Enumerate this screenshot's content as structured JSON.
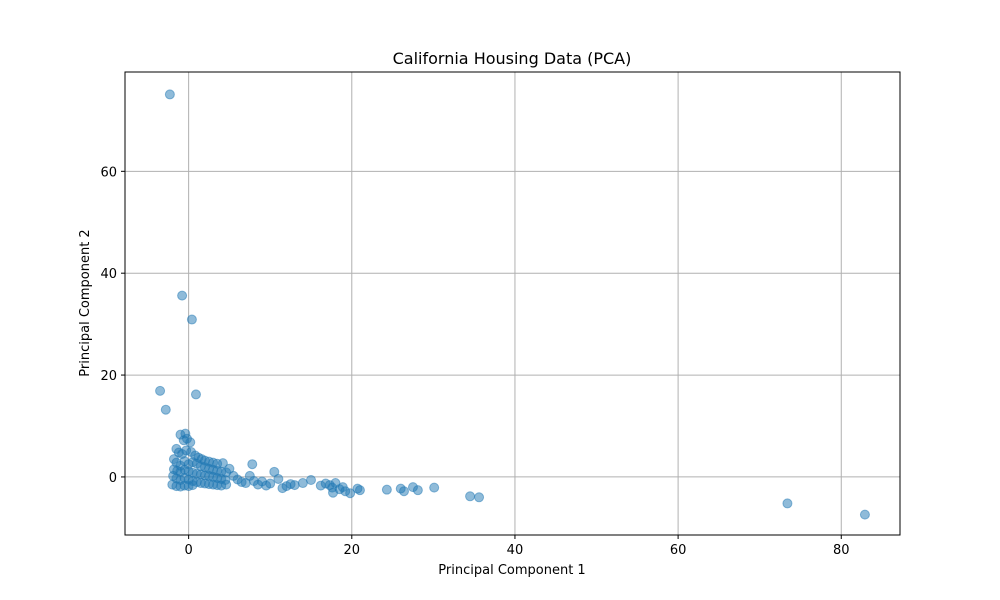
{
  "chart_data": {
    "type": "scatter",
    "title": "California Housing Data (PCA)",
    "xlabel": "Principal Component 1",
    "ylabel": "Principal Component 2",
    "xlim": [
      -7.8,
      87.2
    ],
    "ylim": [
      -11.4,
      79.5
    ],
    "xticks": [
      0,
      20,
      40,
      60,
      80
    ],
    "yticks": [
      0,
      20,
      40,
      60
    ],
    "grid": true,
    "legend": "none",
    "color": "#1f77b4",
    "alpha": 0.5,
    "series": [
      {
        "points": [
          [
            -2.3,
            75.1
          ],
          [
            -0.8,
            35.6
          ],
          [
            0.4,
            30.9
          ],
          [
            -3.5,
            16.9
          ],
          [
            0.9,
            16.2
          ],
          [
            -2.8,
            13.2
          ],
          [
            -1.0,
            8.3
          ],
          [
            -0.4,
            8.5
          ],
          [
            -0.2,
            7.5
          ],
          [
            0.2,
            6.8
          ],
          [
            -0.6,
            7.2
          ],
          [
            -1.5,
            5.5
          ],
          [
            -1.2,
            4.8
          ],
          [
            -0.8,
            4.5
          ],
          [
            -0.3,
            5.2
          ],
          [
            0.3,
            4.9
          ],
          [
            0.8,
            4.2
          ],
          [
            1.2,
            3.8
          ],
          [
            1.6,
            3.5
          ],
          [
            2.0,
            3.2
          ],
          [
            2.5,
            3.0
          ],
          [
            3.0,
            2.8
          ],
          [
            3.5,
            2.6
          ],
          [
            4.2,
            2.7
          ],
          [
            -1.8,
            3.5
          ],
          [
            -1.5,
            2.8
          ],
          [
            -1.0,
            2.2
          ],
          [
            -0.5,
            3.1
          ],
          [
            0.0,
            2.5
          ],
          [
            0.5,
            2.9
          ],
          [
            1.0,
            2.6
          ],
          [
            1.5,
            2.1
          ],
          [
            2.0,
            1.9
          ],
          [
            2.5,
            1.6
          ],
          [
            3.0,
            1.4
          ],
          [
            3.5,
            1.2
          ],
          [
            4.0,
            1.0
          ],
          [
            4.6,
            0.9
          ],
          [
            -1.8,
            1.5
          ],
          [
            -1.4,
            1.2
          ],
          [
            -1.0,
            1.0
          ],
          [
            -0.5,
            1.4
          ],
          [
            0.0,
            1.1
          ],
          [
            0.5,
            0.8
          ],
          [
            1.0,
            0.6
          ],
          [
            1.5,
            0.5
          ],
          [
            2.0,
            0.3
          ],
          [
            2.5,
            0.2
          ],
          [
            3.0,
            0.0
          ],
          [
            3.5,
            -0.2
          ],
          [
            4.0,
            -0.4
          ],
          [
            4.5,
            -0.6
          ],
          [
            -1.9,
            0.2
          ],
          [
            -1.5,
            -0.3
          ],
          [
            -1.0,
            -0.6
          ],
          [
            -0.5,
            -0.2
          ],
          [
            0.0,
            -0.5
          ],
          [
            0.5,
            -0.8
          ],
          [
            1.0,
            -1.0
          ],
          [
            1.5,
            -1.2
          ],
          [
            2.0,
            -1.3
          ],
          [
            2.5,
            -1.4
          ],
          [
            3.0,
            -1.5
          ],
          [
            3.5,
            -1.6
          ],
          [
            4.0,
            -1.7
          ],
          [
            4.6,
            -1.5
          ],
          [
            -2.0,
            -1.5
          ],
          [
            -1.5,
            -1.8
          ],
          [
            -1.0,
            -1.9
          ],
          [
            -0.5,
            -1.7
          ],
          [
            0.0,
            -1.8
          ],
          [
            0.5,
            -1.6
          ],
          [
            5.0,
            1.6
          ],
          [
            5.5,
            0.2
          ],
          [
            6.0,
            -0.5
          ],
          [
            6.5,
            -1.0
          ],
          [
            7.0,
            -1.2
          ],
          [
            7.5,
            0.2
          ],
          [
            8.0,
            -0.8
          ],
          [
            7.8,
            2.5
          ],
          [
            8.5,
            -1.5
          ],
          [
            9.0,
            -0.9
          ],
          [
            9.5,
            -1.7
          ],
          [
            10.0,
            -1.3
          ],
          [
            10.5,
            1.0
          ],
          [
            11.0,
            -0.4
          ],
          [
            11.5,
            -2.2
          ],
          [
            12.0,
            -1.8
          ],
          [
            12.5,
            -1.4
          ],
          [
            13.0,
            -1.6
          ],
          [
            14.0,
            -1.2
          ],
          [
            15.0,
            -0.6
          ],
          [
            16.2,
            -1.7
          ],
          [
            16.8,
            -1.3
          ],
          [
            17.3,
            -1.6
          ],
          [
            17.6,
            -2.1
          ],
          [
            17.7,
            -3.1
          ],
          [
            18.0,
            -1.2
          ],
          [
            18.5,
            -2.4
          ],
          [
            18.9,
            -2.0
          ],
          [
            19.2,
            -2.8
          ],
          [
            19.8,
            -3.2
          ],
          [
            20.7,
            -2.3
          ],
          [
            21.0,
            -2.6
          ],
          [
            24.3,
            -2.5
          ],
          [
            26.0,
            -2.3
          ],
          [
            26.4,
            -2.8
          ],
          [
            27.5,
            -2.0
          ],
          [
            28.1,
            -2.6
          ],
          [
            30.1,
            -2.1
          ],
          [
            34.5,
            -3.8
          ],
          [
            35.6,
            -4.0
          ],
          [
            73.4,
            -5.2
          ],
          [
            82.9,
            -7.4
          ]
        ]
      }
    ]
  }
}
